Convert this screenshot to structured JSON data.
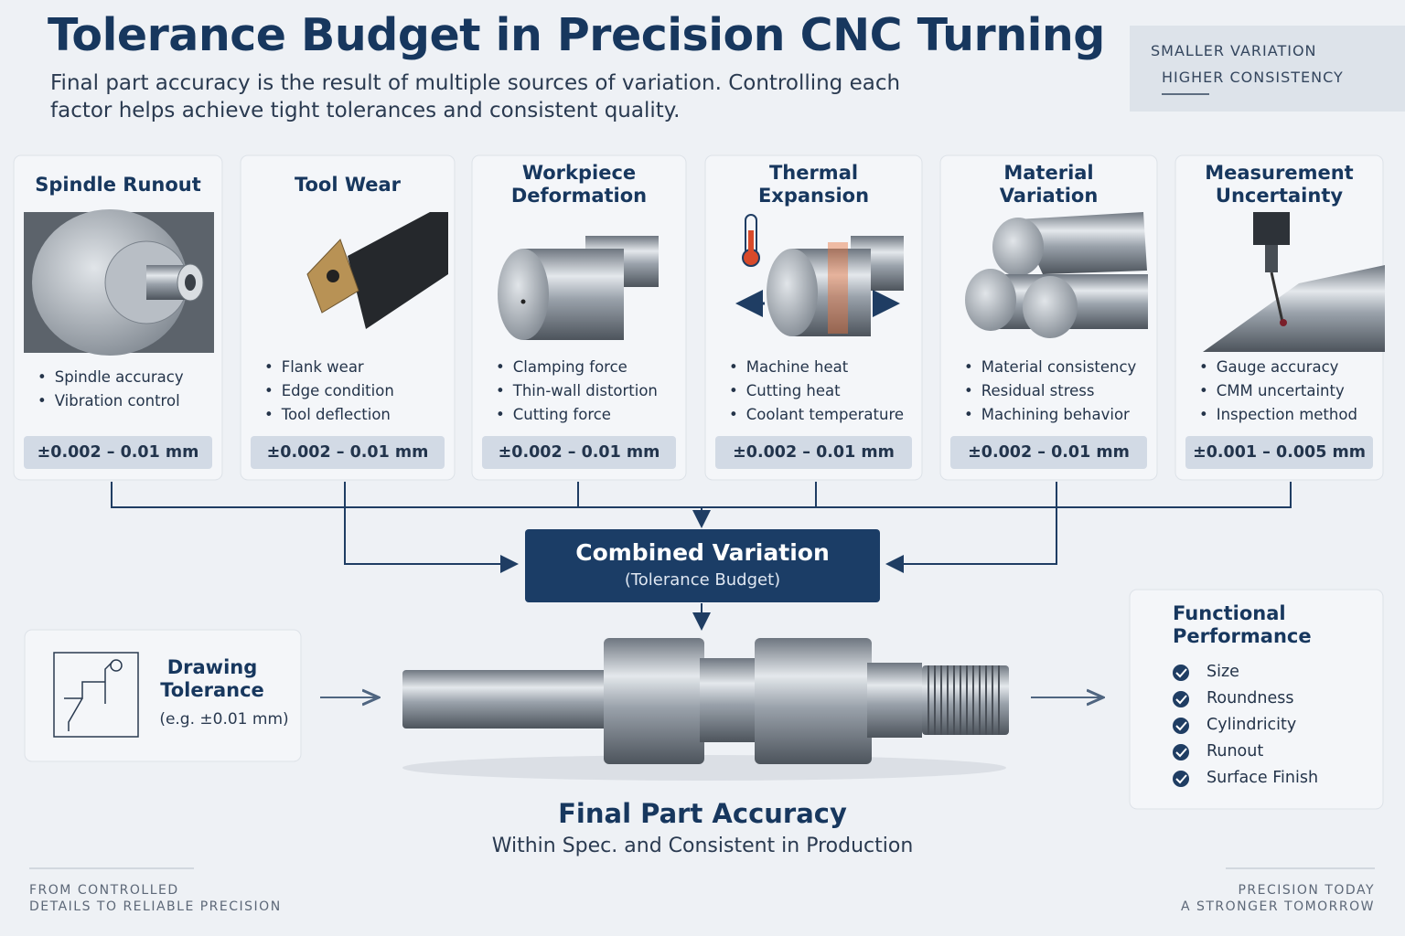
{
  "header": {
    "title": "Tolerance Budget in Precision CNC Turning",
    "subtitle": "Final part accuracy is the result of multiple sources of variation. Controlling each factor helps achieve tight tolerances and consistent quality.",
    "badge": [
      "SMALLER VARIATION",
      "HIGHER CONSISTENCY"
    ]
  },
  "factors": [
    {
      "title": "Spindle Runout",
      "bullets": [
        "Spindle accuracy",
        "Vibration control"
      ],
      "range": "±0.002 – 0.01 mm"
    },
    {
      "title": "Tool Wear",
      "bullets": [
        "Flank wear",
        "Edge condition",
        "Tool deflection"
      ],
      "range": "±0.002 – 0.01 mm"
    },
    {
      "title": "Workpiece Deformation",
      "bullets": [
        "Clamping force",
        "Thin-wall distortion",
        "Cutting force"
      ],
      "range": "±0.002 – 0.01 mm"
    },
    {
      "title": "Thermal Expansion",
      "bullets": [
        "Machine heat",
        "Cutting heat",
        "Coolant temperature"
      ],
      "range": "±0.002 – 0.01 mm"
    },
    {
      "title": "Material Variation",
      "bullets": [
        "Material consistency",
        "Residual stress",
        "Machining behavior"
      ],
      "range": "±0.002 – 0.01 mm"
    },
    {
      "title": "Measurement Uncertainty",
      "bullets": [
        "Gauge accuracy",
        "CMM uncertainty",
        "Inspection method"
      ],
      "range": "±0.001 – 0.005 mm"
    }
  ],
  "combined": {
    "title": "Combined Variation",
    "subtitle": "(Tolerance Budget)"
  },
  "drawing": {
    "title": "Drawing Tolerance",
    "note": "(e.g. ±0.01 mm)"
  },
  "result": {
    "title": "Final Part Accuracy",
    "subtitle": "Within Spec. and Consistent in Production"
  },
  "functional": {
    "title": "Functional Performance",
    "items": [
      "Size",
      "Roundness",
      "Cylindricity",
      "Runout",
      "Surface Finish"
    ]
  },
  "footer": {
    "left": [
      "FROM CONTROLLED",
      "DETAILS TO RELIABLE PRECISION"
    ],
    "right": [
      "PRECISION TODAY",
      "A STRONGER TOMORROW"
    ]
  }
}
